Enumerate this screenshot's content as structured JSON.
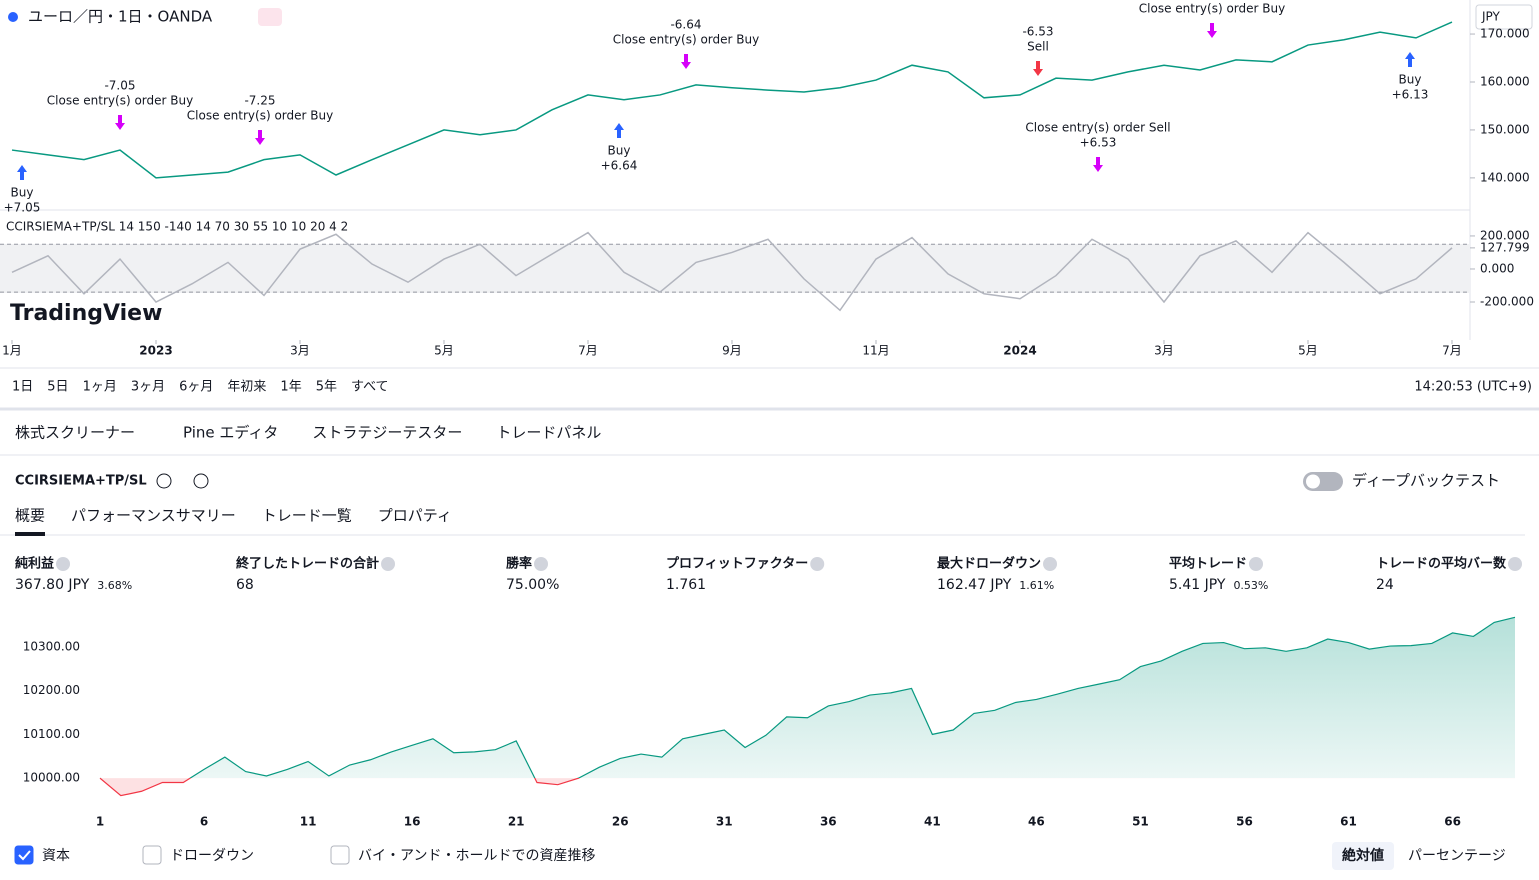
{
  "header": {
    "symbol": "ユーロ／円・1日・OANDA",
    "currency": "JPY"
  },
  "price_chart": {
    "type": "line",
    "color": "#089981",
    "x": [
      0,
      0.5,
      1,
      1.5,
      2,
      2.5,
      3,
      3.5,
      4,
      4.5,
      5,
      5.5,
      6,
      6.5,
      7,
      7.5,
      8,
      8.5,
      9,
      9.5,
      10,
      10.5,
      11,
      11.5,
      12,
      12.5,
      13,
      13.5,
      14,
      14.5,
      15,
      15.5,
      16,
      16.5,
      17,
      17.5,
      18,
      18.5,
      19,
      19.5,
      20
    ],
    "values": [
      145.8,
      144.8,
      143.8,
      145.8,
      140,
      140.6,
      141.2,
      143.8,
      144.8,
      140.6,
      143.8,
      146.9,
      150,
      149,
      150,
      154.2,
      157.3,
      156.3,
      157.3,
      159.4,
      158.8,
      158.3,
      157.9,
      158.8,
      160.4,
      163.5,
      162.1,
      156.7,
      157.3,
      160.8,
      160.4,
      162.1,
      163.5,
      162.5,
      164.6,
      164.2,
      167.7,
      168.8,
      170.4,
      169.2,
      172.5
    ],
    "xlim": [
      0,
      20.5
    ],
    "ylim": [
      133.3,
      177.1
    ],
    "yticks": [
      {
        "value": 140,
        "label": "140.000"
      },
      {
        "value": 150,
        "label": "150.000"
      },
      {
        "value": 160,
        "label": "160.000"
      },
      {
        "value": 170,
        "label": "170.000"
      }
    ],
    "xticks": [
      {
        "value": 0,
        "label": "1月"
      },
      {
        "value": 2,
        "label": "2023"
      },
      {
        "value": 4,
        "label": "3月"
      },
      {
        "value": 6,
        "label": "5月"
      },
      {
        "value": 8,
        "label": "7月"
      },
      {
        "value": 10,
        "label": "9月"
      },
      {
        "value": 12,
        "label": "11月"
      },
      {
        "value": 14,
        "label": "2024"
      },
      {
        "value": 16,
        "label": "3月"
      },
      {
        "value": 18,
        "label": "5月"
      },
      {
        "value": 20,
        "label": "7月"
      }
    ],
    "annotations": [
      {
        "lines": [
          "Buy",
          "+7.05"
        ]
      },
      {
        "lines": [
          "-7.05",
          "Close entry(s) order Buy"
        ]
      },
      {
        "lines": [
          "-7.25",
          "Close entry(s) order Buy"
        ]
      },
      {
        "lines": [
          "Buy",
          "+6.64"
        ]
      },
      {
        "lines": [
          "-6.64",
          "Close entry(s) order Buy"
        ]
      },
      {
        "lines": [
          "-6.53",
          "Sell"
        ]
      },
      {
        "lines": [
          "Close entry(s) order Sell",
          "+6.53"
        ]
      },
      {
        "lines": [
          "Close entry(s) order Buy"
        ]
      },
      {
        "lines": [
          "Buy",
          "+6.13"
        ]
      }
    ]
  },
  "indicator": {
    "type": "line",
    "title": "CCIRSIEMA+TP/SL 14 150 -140 14 70 30 55 10 10 20 4 2",
    "color": "#b2b5be",
    "values": [
      -20,
      80,
      -150,
      60,
      -200,
      -90,
      40,
      -160,
      120,
      210,
      30,
      -80,
      60,
      150,
      -40,
      90,
      220,
      -20,
      -140,
      40,
      100,
      180,
      -60,
      -250,
      60,
      190,
      -30,
      -150,
      -180,
      -40,
      180,
      60,
      -200,
      80,
      170,
      -20,
      220,
      40,
      -150,
      -60,
      127.799
    ],
    "ylim": [
      -430,
      345
    ],
    "yticks": [
      {
        "value": 200,
        "label": "200.000"
      },
      127.799,
      {
        "value": 0,
        "label": "0.000"
      },
      {
        "value": -200,
        "label": "-200.000"
      }
    ],
    "levels": [
      150,
      -140
    ]
  },
  "watermark": "TradingView",
  "range_buttons": [
    "1日",
    "5日",
    "1ヶ月",
    "3ヶ月",
    "6ヶ月",
    "年初来",
    "1年",
    "5年",
    "すべて"
  ],
  "clock": "14:20:53 (UTC+9)",
  "panel_tabs": [
    "株式スクリーナー",
    "Pine エディタ",
    "ストラテジーテスター",
    "トレードパネル"
  ],
  "active_tab": 2,
  "strategy": {
    "name": "CCIRSIEMA+TP/SL",
    "deep_backtest": "ディープバックテスト",
    "tabs": [
      "概要",
      "パフォーマンスサマリー",
      "トレード一覧",
      "プロパティ"
    ],
    "metrics": [
      {
        "label": "純利益",
        "value": "367.80 JPY",
        "percent": "3.68%",
        "tone": "up"
      },
      {
        "label": "終了したトレードの合計",
        "value": "68"
      },
      {
        "label": "勝率",
        "value": "75.00%",
        "tone": "up"
      },
      {
        "label": "プロフィットファクター",
        "value": "1.761",
        "tone": "up"
      },
      {
        "label": "最大ドローダウン",
        "value": "162.47 JPY",
        "percent": "1.61%",
        "tone": "down"
      },
      {
        "label": "平均トレード",
        "value": "5.41 JPY",
        "percent": "0.53%",
        "tone": "up"
      },
      {
        "label": "トレードの平均バー数",
        "value": "24"
      }
    ]
  },
  "equity_chart": {
    "type": "area",
    "color": "#089981",
    "negative_color": "#f23645",
    "baseline": 10000,
    "x": [
      1,
      2,
      3,
      4,
      5,
      6,
      7,
      8,
      9,
      10,
      11,
      12,
      13,
      14,
      15,
      16,
      17,
      18,
      19,
      20,
      21,
      22,
      23,
      24,
      25,
      26,
      27,
      28,
      29,
      30,
      31,
      32,
      33,
      34,
      35,
      36,
      37,
      38,
      39,
      40,
      41,
      42,
      43,
      44,
      45,
      46,
      47,
      48,
      49,
      50,
      51,
      52,
      53,
      54,
      55,
      56,
      57,
      58,
      59,
      60,
      61,
      62,
      63,
      64,
      65,
      66,
      67,
      68,
      69
    ],
    "values": [
      10000,
      9960,
      9970,
      9990,
      9990,
      10020,
      10048,
      10015,
      10005,
      10020,
      10038,
      10005,
      10030,
      10042,
      10060,
      10075,
      10090,
      10058,
      10060,
      10065,
      10085,
      9990,
      9985,
      10000,
      10025,
      10045,
      10055,
      10048,
      10090,
      10100,
      10110,
      10070,
      10098,
      10140,
      10138,
      10165,
      10175,
      10190,
      10195,
      10205,
      10100,
      10110,
      10148,
      10155,
      10173,
      10180,
      10192,
      10205,
      10215,
      10225,
      10255,
      10268,
      10290,
      10308,
      10310,
      10296,
      10298,
      10290,
      10298,
      10318,
      10310,
      10295,
      10302,
      10303,
      10308,
      10332,
      10324,
      10356,
      10367.8
    ],
    "xlim": [
      1,
      69
    ],
    "ylim": [
      9950,
      10373
    ],
    "xticks": [
      1,
      6,
      11,
      16,
      21,
      26,
      31,
      36,
      41,
      46,
      51,
      56,
      61,
      66
    ],
    "yticks": [
      {
        "value": 10000,
        "label": "10000.00"
      },
      {
        "value": 10100,
        "label": "10100.00"
      },
      {
        "value": 10200,
        "label": "10200.00"
      },
      {
        "value": 10300,
        "label": "10300.00"
      }
    ]
  },
  "legend": {
    "items": [
      "資本",
      "ドローダウン",
      "バイ・アンド・ホールドでの資産推移"
    ],
    "checked": [
      true,
      false,
      false
    ],
    "modes": [
      "絶対値",
      "パーセンテージ"
    ]
  }
}
